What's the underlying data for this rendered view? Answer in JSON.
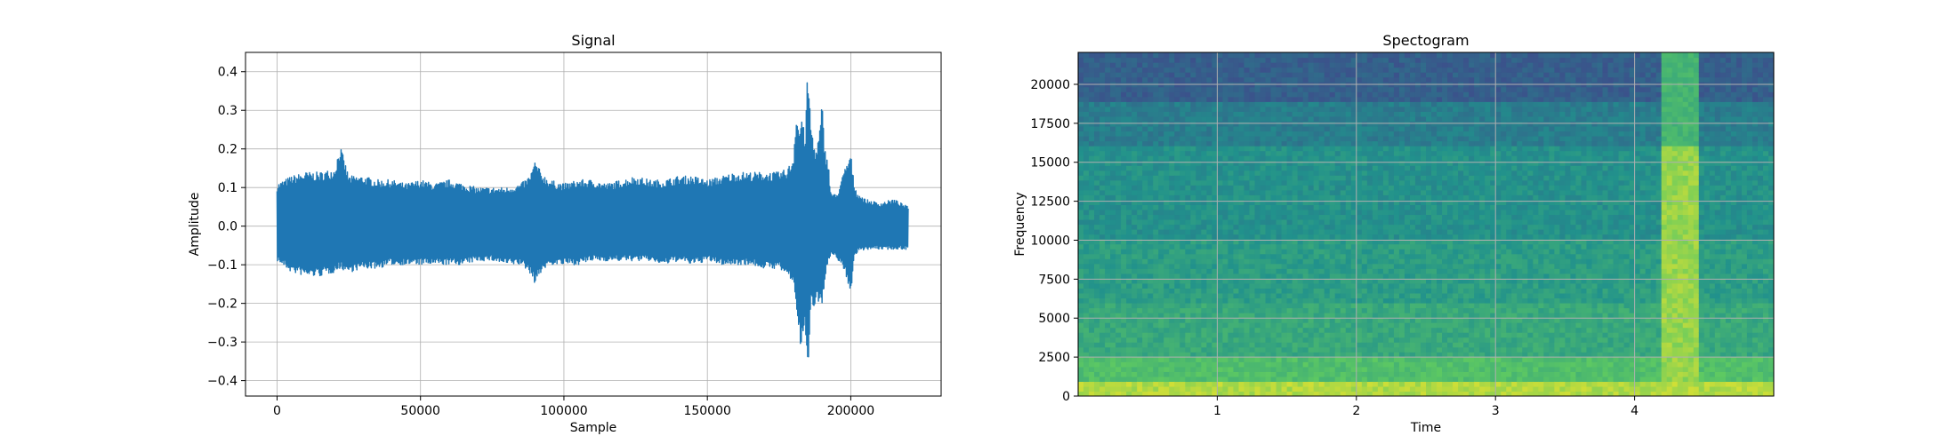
{
  "chart_data": [
    {
      "type": "line",
      "title": "Signal",
      "xlabel": "Sample",
      "ylabel": "Amplitude",
      "xlim": [
        -11000,
        231500
      ],
      "ylim": [
        -0.44,
        0.45
      ],
      "xticks": [
        0,
        50000,
        100000,
        150000,
        200000
      ],
      "xtick_labels": [
        "0",
        "50000",
        "100000",
        "150000",
        "200000"
      ],
      "yticks": [
        0.4,
        0.3,
        0.2,
        0.1,
        0.0,
        -0.1,
        -0.2,
        -0.3,
        -0.4
      ],
      "ytick_labels": [
        "0.4",
        "0.3",
        "0.2",
        "0.1",
        "0.0",
        "−0.1",
        "−0.2",
        "−0.3",
        "−0.4"
      ],
      "grid": true,
      "color": "#1f77b4",
      "series": [
        {
          "x": [
            0,
            5000,
            10000,
            15000,
            20000,
            22000,
            25000,
            30000,
            35000,
            40000,
            45000,
            50000,
            55000,
            60000,
            65000,
            70000,
            75000,
            80000,
            85000,
            88000,
            90000,
            92000,
            95000,
            100000,
            105000,
            110000,
            115000,
            120000,
            125000,
            130000,
            135000,
            140000,
            145000,
            150000,
            155000,
            160000,
            165000,
            170000,
            175000,
            178000,
            180000,
            181000,
            182000,
            183000,
            184000,
            185000,
            186000,
            187000,
            188000,
            189000,
            190000,
            191000,
            192000,
            193000,
            195000,
            198000,
            200000,
            201000,
            202000,
            205000,
            210000,
            215000,
            220000
          ],
          "envelope_max": [
            0.11,
            0.13,
            0.14,
            0.14,
            0.15,
            0.21,
            0.13,
            0.13,
            0.12,
            0.12,
            0.11,
            0.12,
            0.11,
            0.12,
            0.11,
            0.1,
            0.1,
            0.1,
            0.11,
            0.13,
            0.17,
            0.14,
            0.12,
            0.11,
            0.12,
            0.12,
            0.11,
            0.12,
            0.13,
            0.12,
            0.12,
            0.13,
            0.13,
            0.12,
            0.13,
            0.14,
            0.14,
            0.14,
            0.14,
            0.15,
            0.18,
            0.31,
            0.25,
            0.3,
            0.22,
            0.41,
            0.28,
            0.22,
            0.2,
            0.24,
            0.32,
            0.2,
            0.18,
            0.09,
            0.08,
            0.15,
            0.19,
            0.12,
            0.09,
            0.07,
            0.06,
            0.07,
            0.05
          ],
          "envelope_min": [
            -0.09,
            -0.12,
            -0.13,
            -0.13,
            -0.12,
            -0.11,
            -0.12,
            -0.11,
            -0.11,
            -0.1,
            -0.1,
            -0.1,
            -0.1,
            -0.1,
            -0.1,
            -0.09,
            -0.09,
            -0.1,
            -0.1,
            -0.12,
            -0.15,
            -0.12,
            -0.1,
            -0.1,
            -0.1,
            -0.09,
            -0.09,
            -0.09,
            -0.09,
            -0.09,
            -0.1,
            -0.09,
            -0.1,
            -0.09,
            -0.1,
            -0.1,
            -0.1,
            -0.11,
            -0.11,
            -0.13,
            -0.15,
            -0.2,
            -0.3,
            -0.32,
            -0.27,
            -0.4,
            -0.2,
            -0.22,
            -0.18,
            -0.2,
            -0.21,
            -0.14,
            -0.1,
            -0.08,
            -0.08,
            -0.12,
            -0.18,
            -0.09,
            -0.07,
            -0.06,
            -0.06,
            -0.06,
            -0.06
          ]
        }
      ]
    },
    {
      "type": "heatmap",
      "title": "Spectogram",
      "xlabel": "Time",
      "ylabel": "Frequency",
      "xlim": [
        0,
        5
      ],
      "ylim": [
        0,
        22050
      ],
      "xticks": [
        1,
        2,
        3,
        4
      ],
      "xtick_labels": [
        "1",
        "2",
        "3",
        "4"
      ],
      "yticks": [
        0,
        2500,
        5000,
        7500,
        10000,
        12500,
        15000,
        17500,
        20000
      ],
      "ytick_labels": [
        "0",
        "2500",
        "5000",
        "7500",
        "10000",
        "12500",
        "15000",
        "17500",
        "20000"
      ],
      "grid": true,
      "colormap": "viridis",
      "frequency_band_levels": [
        {
          "from": 0,
          "to": 800,
          "level": 0.88
        },
        {
          "from": 800,
          "to": 2500,
          "level": 0.7
        },
        {
          "from": 2500,
          "to": 6000,
          "level": 0.6
        },
        {
          "from": 6000,
          "to": 10000,
          "level": 0.55
        },
        {
          "from": 10000,
          "to": 16000,
          "level": 0.5
        },
        {
          "from": 16000,
          "to": 19000,
          "level": 0.42
        },
        {
          "from": 19000,
          "to": 22050,
          "level": 0.3
        }
      ],
      "time_events": [
        {
          "from": 4.18,
          "to": 4.45,
          "level": 0.85
        }
      ]
    }
  ]
}
